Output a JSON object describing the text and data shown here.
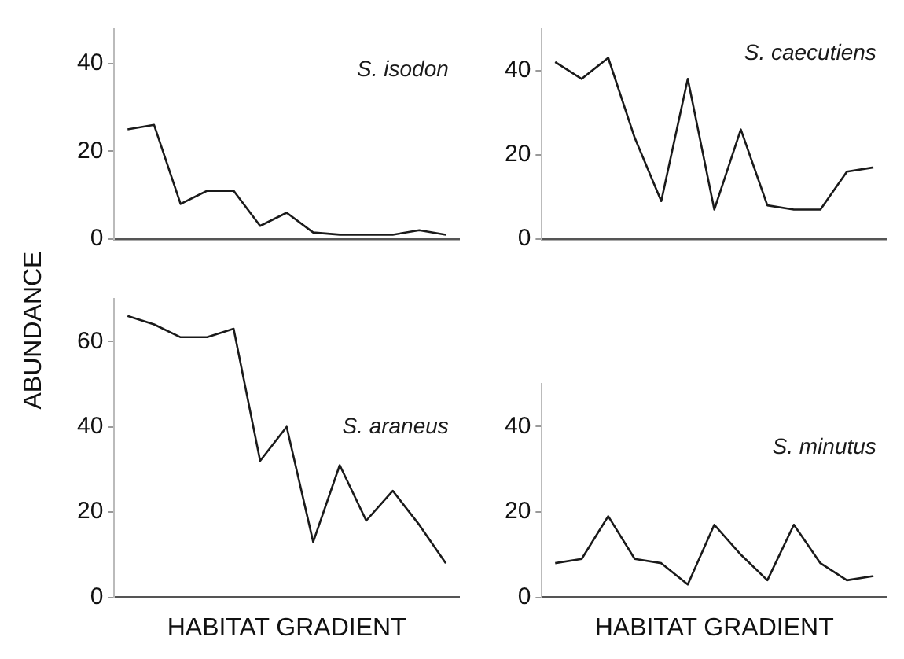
{
  "chart_data": [
    {
      "type": "line",
      "ylabel": "ABUNDANCE",
      "categories": [
        null,
        null,
        null,
        null,
        null,
        null,
        null,
        null,
        null,
        null,
        null,
        null,
        null
      ],
      "ylim": [
        0,
        48
      ],
      "yticks": [
        0,
        20,
        40
      ],
      "tick_labels": "y",
      "marker": "none",
      "series": [
        {
          "name": "S. isodon",
          "color": "#1a1a1a",
          "values": [
            25,
            26,
            8,
            11,
            11,
            3,
            6,
            1.5,
            1,
            1,
            1,
            2,
            1
          ]
        }
      ]
    },
    {
      "type": "line",
      "categories": [
        null,
        null,
        null,
        null,
        null,
        null,
        null,
        null,
        null,
        null,
        null,
        null,
        null
      ],
      "ylim": [
        0,
        50
      ],
      "yticks": [
        0,
        20,
        40
      ],
      "tick_labels": "y",
      "marker": "none",
      "series": [
        {
          "name": "S. caecutiens",
          "color": "#1a1a1a",
          "values": [
            42,
            38,
            43,
            24,
            9,
            38,
            7,
            26,
            8,
            7,
            7,
            16,
            17
          ]
        }
      ]
    },
    {
      "type": "line",
      "xlabel": "HABITAT GRADIENT",
      "categories": [
        null,
        null,
        null,
        null,
        null,
        null,
        null,
        null,
        null,
        null,
        null,
        null,
        null
      ],
      "ylim": [
        0,
        70
      ],
      "yticks": [
        0,
        20,
        40,
        60
      ],
      "tick_labels": "y",
      "marker": "none",
      "series": [
        {
          "name": "S. araneus",
          "color": "#1a1a1a",
          "values": [
            66,
            64,
            61,
            61,
            63,
            32,
            40,
            13,
            31,
            18,
            25,
            17,
            8
          ]
        }
      ]
    },
    {
      "type": "line",
      "xlabel": "HABITAT GRADIENT",
      "categories": [
        null,
        null,
        null,
        null,
        null,
        null,
        null,
        null,
        null,
        null,
        null,
        null,
        null
      ],
      "ylim": [
        0,
        50
      ],
      "yticks": [
        0,
        20,
        40
      ],
      "tick_labels": "y",
      "marker": "none",
      "series": [
        {
          "name": "S. minutus",
          "color": "#1a1a1a",
          "values": [
            8,
            9,
            19,
            9,
            8,
            3,
            17,
            10,
            4,
            17,
            8,
            4,
            5
          ]
        }
      ]
    }
  ]
}
